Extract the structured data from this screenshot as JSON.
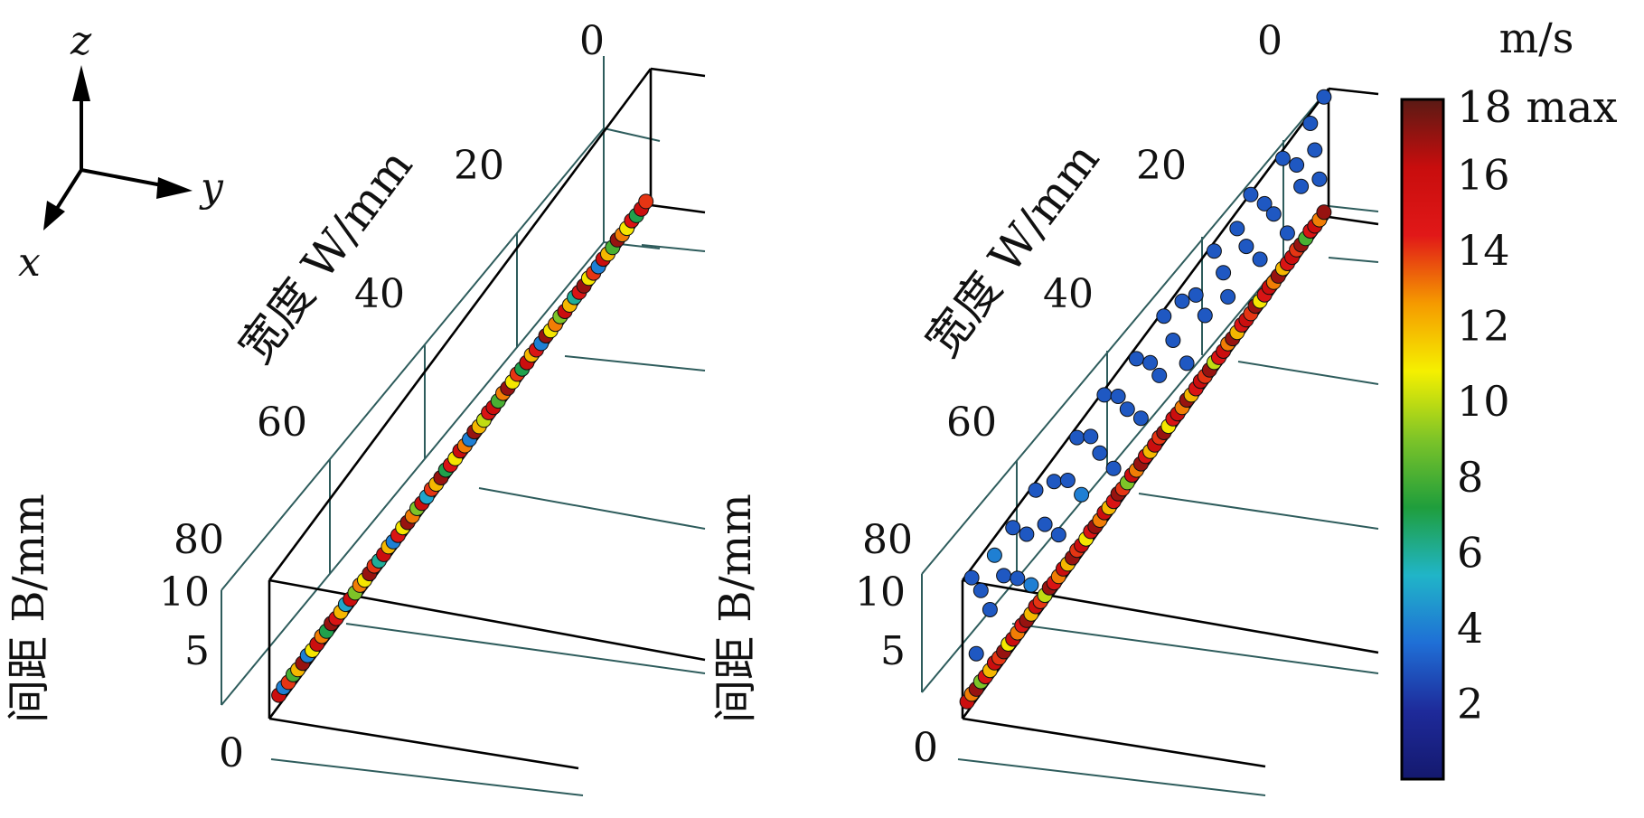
{
  "axes_key": {
    "z": "z",
    "y": "y",
    "x": "x"
  },
  "colorbar": {
    "unit": "m/s",
    "max_label": "18 max",
    "ticks": [
      "2",
      "4",
      "6",
      "8",
      "10",
      "12",
      "14",
      "16"
    ],
    "range": [
      0,
      18
    ],
    "colors": [
      "#14196e",
      "#1e2a9a",
      "#1f6fd6",
      "#20b5c8",
      "#1f9e3c",
      "#7dc428",
      "#f5f000",
      "#f59a00",
      "#e11818",
      "#c80d0d",
      "#5a1a14"
    ]
  },
  "chart_data": [
    {
      "type": "scatter",
      "panel": "left",
      "width_axis": {
        "label": "宽度 W/mm",
        "ticks": [
          "0",
          "20",
          "40",
          "60",
          "80"
        ],
        "range": [
          0,
          80
        ]
      },
      "gap_axis": {
        "label": "间距 B/mm",
        "ticks": [
          "0",
          "5",
          "10"
        ],
        "range": [
          0,
          10
        ]
      },
      "description_of_distribution": "particles lie along gap B = 0 across full width, speeds 2–18 m/s",
      "points": [
        {
          "w": 2,
          "b": 0.2,
          "v": 16
        },
        {
          "w": 3,
          "b": 0.3,
          "v": 4
        },
        {
          "w": 4,
          "b": 0.2,
          "v": 14
        },
        {
          "w": 5,
          "b": 0.3,
          "v": 8
        },
        {
          "w": 6,
          "b": 0.2,
          "v": 12
        },
        {
          "w": 7,
          "b": 0.2,
          "v": 17
        },
        {
          "w": 8,
          "b": 0.3,
          "v": 4
        },
        {
          "w": 9,
          "b": 0.2,
          "v": 11
        },
        {
          "w": 10,
          "b": 0.2,
          "v": 16
        },
        {
          "w": 11,
          "b": 0.3,
          "v": 13
        },
        {
          "w": 12,
          "b": 0.2,
          "v": 7
        },
        {
          "w": 13,
          "b": 0.3,
          "v": 17
        },
        {
          "w": 14,
          "b": 0.2,
          "v": 15
        },
        {
          "w": 15,
          "b": 0.2,
          "v": 12
        },
        {
          "w": 16,
          "b": 0.3,
          "v": 5
        },
        {
          "w": 17,
          "b": 0.2,
          "v": 16
        },
        {
          "w": 18,
          "b": 0.2,
          "v": 9
        },
        {
          "w": 19,
          "b": 0.3,
          "v": 13
        },
        {
          "w": 20,
          "b": 0.2,
          "v": 11
        },
        {
          "w": 21,
          "b": 0.2,
          "v": 17
        },
        {
          "w": 22,
          "b": 0.3,
          "v": 14
        },
        {
          "w": 23,
          "b": 0.2,
          "v": 6
        },
        {
          "w": 24,
          "b": 0.2,
          "v": 16
        },
        {
          "w": 25,
          "b": 0.3,
          "v": 12
        },
        {
          "w": 26,
          "b": 0.2,
          "v": 4
        },
        {
          "w": 27,
          "b": 0.2,
          "v": 15
        },
        {
          "w": 28,
          "b": 0.3,
          "v": 11
        },
        {
          "w": 29,
          "b": 0.2,
          "v": 17
        },
        {
          "w": 30,
          "b": 0.2,
          "v": 13
        },
        {
          "w": 31,
          "b": 0.3,
          "v": 9
        },
        {
          "w": 32,
          "b": 0.2,
          "v": 16
        },
        {
          "w": 33,
          "b": 0.2,
          "v": 5
        },
        {
          "w": 34,
          "b": 0.3,
          "v": 14
        },
        {
          "w": 35,
          "b": 0.2,
          "v": 12
        },
        {
          "w": 36,
          "b": 0.2,
          "v": 17
        },
        {
          "w": 37,
          "b": 0.3,
          "v": 7
        },
        {
          "w": 38,
          "b": 0.2,
          "v": 15
        },
        {
          "w": 39,
          "b": 0.2,
          "v": 11
        },
        {
          "w": 40,
          "b": 0.3,
          "v": 16
        },
        {
          "w": 41,
          "b": 0.2,
          "v": 13
        },
        {
          "w": 42,
          "b": 0.2,
          "v": 4
        },
        {
          "w": 43,
          "b": 0.3,
          "v": 17
        },
        {
          "w": 44,
          "b": 0.2,
          "v": 12
        },
        {
          "w": 45,
          "b": 0.2,
          "v": 10
        },
        {
          "w": 46,
          "b": 0.3,
          "v": 15
        },
        {
          "w": 47,
          "b": 0.2,
          "v": 16
        },
        {
          "w": 48,
          "b": 0.2,
          "v": 8
        },
        {
          "w": 49,
          "b": 0.3,
          "v": 13
        },
        {
          "w": 50,
          "b": 0.2,
          "v": 17
        },
        {
          "w": 51,
          "b": 0.2,
          "v": 11
        },
        {
          "w": 52,
          "b": 0.3,
          "v": 14
        },
        {
          "w": 53,
          "b": 0.2,
          "v": 7
        },
        {
          "w": 54,
          "b": 0.2,
          "v": 16
        },
        {
          "w": 55,
          "b": 0.3,
          "v": 12
        },
        {
          "w": 56,
          "b": 0.2,
          "v": 15
        },
        {
          "w": 57,
          "b": 0.2,
          "v": 4
        },
        {
          "w": 58,
          "b": 0.3,
          "v": 17
        },
        {
          "w": 59,
          "b": 0.2,
          "v": 11
        },
        {
          "w": 60,
          "b": 0.2,
          "v": 13
        },
        {
          "w": 61,
          "b": 0.3,
          "v": 9
        },
        {
          "w": 62,
          "b": 0.2,
          "v": 16
        },
        {
          "w": 63,
          "b": 0.2,
          "v": 12
        },
        {
          "w": 64,
          "b": 0.3,
          "v": 6
        },
        {
          "w": 65,
          "b": 0.2,
          "v": 15
        },
        {
          "w": 66,
          "b": 0.2,
          "v": 17
        },
        {
          "w": 67,
          "b": 0.3,
          "v": 11
        },
        {
          "w": 68,
          "b": 0.2,
          "v": 14
        },
        {
          "w": 69,
          "b": 0.2,
          "v": 4
        },
        {
          "w": 70,
          "b": 0.3,
          "v": 16
        },
        {
          "w": 71,
          "b": 0.2,
          "v": 12
        },
        {
          "w": 72,
          "b": 0.2,
          "v": 8
        },
        {
          "w": 73,
          "b": 0.3,
          "v": 17
        },
        {
          "w": 74,
          "b": 0.2,
          "v": 13
        },
        {
          "w": 75,
          "b": 0.2,
          "v": 11
        },
        {
          "w": 76,
          "b": 0.3,
          "v": 15
        },
        {
          "w": 77,
          "b": 0.2,
          "v": 7
        },
        {
          "w": 78,
          "b": 0.2,
          "v": 16
        },
        {
          "w": 79,
          "b": 0.3,
          "v": 14
        }
      ]
    },
    {
      "type": "scatter",
      "panel": "right",
      "width_axis": {
        "label": "宽度 W/mm",
        "ticks": [
          "0",
          "20",
          "40",
          "60",
          "80"
        ],
        "range": [
          0,
          80
        ]
      },
      "gap_axis": {
        "label": "间距 B/mm",
        "ticks": [
          "0",
          "5",
          "10"
        ],
        "range": [
          0,
          10
        ]
      },
      "description_of_distribution": "fast particles (12–18 m/s) along B = 0; slow particles (≈2–4 m/s) spread over B = 1–10 across the width",
      "points": [
        {
          "w": 1,
          "b": 0.2,
          "v": 16
        },
        {
          "w": 2,
          "b": 0.3,
          "v": 13
        },
        {
          "w": 3,
          "b": 0.2,
          "v": 17
        },
        {
          "w": 4,
          "b": 0.3,
          "v": 9
        },
        {
          "w": 5,
          "b": 0.2,
          "v": 15
        },
        {
          "w": 6,
          "b": 0.2,
          "v": 12
        },
        {
          "w": 7,
          "b": 0.3,
          "v": 16
        },
        {
          "w": 8,
          "b": 0.2,
          "v": 14
        },
        {
          "w": 9,
          "b": 0.2,
          "v": 17
        },
        {
          "w": 10,
          "b": 0.3,
          "v": 11
        },
        {
          "w": 11,
          "b": 0.2,
          "v": 16
        },
        {
          "w": 12,
          "b": 0.2,
          "v": 13
        },
        {
          "w": 13,
          "b": 0.3,
          "v": 15
        },
        {
          "w": 14,
          "b": 0.2,
          "v": 17
        },
        {
          "w": 15,
          "b": 0.2,
          "v": 12
        },
        {
          "w": 16,
          "b": 0.3,
          "v": 16
        },
        {
          "w": 17,
          "b": 0.2,
          "v": 14
        },
        {
          "w": 18,
          "b": 0.2,
          "v": 10
        },
        {
          "w": 19,
          "b": 0.3,
          "v": 17
        },
        {
          "w": 20,
          "b": 0.2,
          "v": 15
        },
        {
          "w": 21,
          "b": 0.2,
          "v": 13
        },
        {
          "w": 22,
          "b": 0.3,
          "v": 16
        },
        {
          "w": 23,
          "b": 0.2,
          "v": 12
        },
        {
          "w": 24,
          "b": 0.2,
          "v": 17
        },
        {
          "w": 25,
          "b": 0.3,
          "v": 14
        },
        {
          "w": 26,
          "b": 0.2,
          "v": 16
        },
        {
          "w": 27,
          "b": 0.2,
          "v": 11
        },
        {
          "w": 28,
          "b": 0.3,
          "v": 15
        },
        {
          "w": 29,
          "b": 0.2,
          "v": 17
        },
        {
          "w": 30,
          "b": 0.2,
          "v": 13
        },
        {
          "w": 31,
          "b": 0.3,
          "v": 16
        },
        {
          "w": 32,
          "b": 0.2,
          "v": 12
        },
        {
          "w": 33,
          "b": 0.2,
          "v": 15
        },
        {
          "w": 34,
          "b": 0.3,
          "v": 17
        },
        {
          "w": 35,
          "b": 0.2,
          "v": 14
        },
        {
          "w": 36,
          "b": 0.2,
          "v": 9
        },
        {
          "w": 37,
          "b": 0.3,
          "v": 16
        },
        {
          "w": 38,
          "b": 0.2,
          "v": 13
        },
        {
          "w": 39,
          "b": 0.2,
          "v": 17
        },
        {
          "w": 40,
          "b": 0.3,
          "v": 15
        },
        {
          "w": 41,
          "b": 0.2,
          "v": 12
        },
        {
          "w": 42,
          "b": 0.2,
          "v": 16
        },
        {
          "w": 43,
          "b": 0.3,
          "v": 14
        },
        {
          "w": 44,
          "b": 0.2,
          "v": 17
        },
        {
          "w": 45,
          "b": 0.2,
          "v": 11
        },
        {
          "w": 46,
          "b": 0.3,
          "v": 15
        },
        {
          "w": 47,
          "b": 0.2,
          "v": 16
        },
        {
          "w": 48,
          "b": 0.2,
          "v": 13
        },
        {
          "w": 49,
          "b": 0.3,
          "v": 17
        },
        {
          "w": 50,
          "b": 0.2,
          "v": 12
        },
        {
          "w": 51,
          "b": 0.2,
          "v": 15
        },
        {
          "w": 52,
          "b": 0.3,
          "v": 16
        },
        {
          "w": 53,
          "b": 0.2,
          "v": 14
        },
        {
          "w": 54,
          "b": 0.2,
          "v": 17
        },
        {
          "w": 55,
          "b": 0.3,
          "v": 10
        },
        {
          "w": 56,
          "b": 0.2,
          "v": 15
        },
        {
          "w": 57,
          "b": 0.2,
          "v": 16
        },
        {
          "w": 58,
          "b": 0.3,
          "v": 13
        },
        {
          "w": 59,
          "b": 0.2,
          "v": 17
        },
        {
          "w": 60,
          "b": 0.2,
          "v": 12
        },
        {
          "w": 61,
          "b": 0.3,
          "v": 15
        },
        {
          "w": 62,
          "b": 0.2,
          "v": 16
        },
        {
          "w": 63,
          "b": 0.2,
          "v": 14
        },
        {
          "w": 64,
          "b": 0.3,
          "v": 17
        },
        {
          "w": 65,
          "b": 0.2,
          "v": 11
        },
        {
          "w": 66,
          "b": 0.2,
          "v": 15
        },
        {
          "w": 67,
          "b": 0.3,
          "v": 16
        },
        {
          "w": 68,
          "b": 0.2,
          "v": 13
        },
        {
          "w": 69,
          "b": 0.2,
          "v": 17
        },
        {
          "w": 70,
          "b": 0.3,
          "v": 12
        },
        {
          "w": 71,
          "b": 0.2,
          "v": 15
        },
        {
          "w": 72,
          "b": 0.2,
          "v": 16
        },
        {
          "w": 73,
          "b": 0.3,
          "v": 14
        },
        {
          "w": 74,
          "b": 0.2,
          "v": 17
        },
        {
          "w": 75,
          "b": 0.2,
          "v": 8
        },
        {
          "w": 76,
          "b": 0.3,
          "v": 15
        },
        {
          "w": 77,
          "b": 0.2,
          "v": 16
        },
        {
          "w": 78,
          "b": 0.2,
          "v": 13
        },
        {
          "w": 79,
          "b": 0.3,
          "v": 17
        },
        {
          "w": 2,
          "b": 9.5,
          "v": 3
        },
        {
          "w": 4,
          "b": 7.5,
          "v": 3
        },
        {
          "w": 6,
          "b": 5.0,
          "v": 3
        },
        {
          "w": 3,
          "b": 3.0,
          "v": 3
        },
        {
          "w": 7,
          "b": 8.8,
          "v": 4
        },
        {
          "w": 9,
          "b": 6.2,
          "v": 3
        },
        {
          "w": 11,
          "b": 9.0,
          "v": 3
        },
        {
          "w": 12,
          "b": 4.5,
          "v": 3
        },
        {
          "w": 14,
          "b": 7.0,
          "v": 3
        },
        {
          "w": 15,
          "b": 2.5,
          "v": 4
        },
        {
          "w": 16,
          "b": 9.5,
          "v": 3
        },
        {
          "w": 18,
          "b": 5.8,
          "v": 3
        },
        {
          "w": 20,
          "b": 8.2,
          "v": 3
        },
        {
          "w": 21,
          "b": 3.5,
          "v": 3
        },
        {
          "w": 23,
          "b": 6.8,
          "v": 3
        },
        {
          "w": 25,
          "b": 9.2,
          "v": 3
        },
        {
          "w": 26,
          "b": 4.2,
          "v": 4
        },
        {
          "w": 28,
          "b": 7.8,
          "v": 3
        },
        {
          "w": 30,
          "b": 5.5,
          "v": 3
        },
        {
          "w": 31,
          "b": 9.6,
          "v": 3
        },
        {
          "w": 33,
          "b": 2.8,
          "v": 3
        },
        {
          "w": 34,
          "b": 8.0,
          "v": 3
        },
        {
          "w": 36,
          "b": 6.0,
          "v": 3
        },
        {
          "w": 38,
          "b": 9.0,
          "v": 3
        },
        {
          "w": 39,
          "b": 3.8,
          "v": 3
        },
        {
          "w": 41,
          "b": 7.2,
          "v": 3
        },
        {
          "w": 43,
          "b": 5.2,
          "v": 3
        },
        {
          "w": 44,
          "b": 9.4,
          "v": 3
        },
        {
          "w": 46,
          "b": 6.5,
          "v": 3
        },
        {
          "w": 48,
          "b": 8.6,
          "v": 3
        },
        {
          "w": 49,
          "b": 3.2,
          "v": 3
        },
        {
          "w": 51,
          "b": 7.6,
          "v": 3
        },
        {
          "w": 53,
          "b": 5.0,
          "v": 3
        },
        {
          "w": 55,
          "b": 9.1,
          "v": 3
        },
        {
          "w": 57,
          "b": 6.4,
          "v": 3
        },
        {
          "w": 58,
          "b": 4.0,
          "v": 3
        },
        {
          "w": 60,
          "b": 8.4,
          "v": 3
        },
        {
          "w": 62,
          "b": 6.0,
          "v": 3
        },
        {
          "w": 63,
          "b": 9.6,
          "v": 3
        },
        {
          "w": 65,
          "b": 3.5,
          "v": 3
        },
        {
          "w": 66,
          "b": 7.4,
          "v": 3
        },
        {
          "w": 68,
          "b": 5.6,
          "v": 3
        },
        {
          "w": 70,
          "b": 9.0,
          "v": 3
        },
        {
          "w": 71,
          "b": 2.6,
          "v": 3
        },
        {
          "w": 73,
          "b": 7.0,
          "v": 3
        },
        {
          "w": 74,
          "b": 4.8,
          "v": 3
        },
        {
          "w": 76,
          "b": 8.8,
          "v": 3
        },
        {
          "w": 77,
          "b": 6.2,
          "v": 3
        },
        {
          "w": 78,
          "b": 3.4,
          "v": 3
        },
        {
          "w": 79,
          "b": 9.4,
          "v": 3
        }
      ]
    }
  ]
}
